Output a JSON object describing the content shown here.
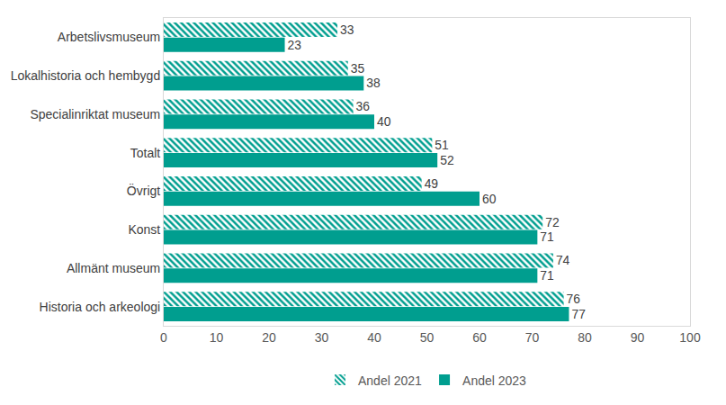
{
  "chart_data": {
    "type": "bar",
    "orientation": "horizontal",
    "categories": [
      "Arbetslivsmuseum",
      "Lokalhistoria och hembygd",
      "Specialinriktat museum",
      "Totalt",
      "Övrigt",
      "Konst",
      "Allmänt museum",
      "Historia och arkeologi"
    ],
    "series": [
      {
        "name": "Andel 2021",
        "color": "#009E8F",
        "marker": "hatched",
        "values": [
          33,
          35,
          36,
          51,
          49,
          72,
          74,
          76
        ]
      },
      {
        "name": "Andel 2023",
        "color": "#009E8F",
        "marker": "solid",
        "values": [
          23,
          38,
          40,
          52,
          60,
          71,
          71,
          77
        ]
      }
    ],
    "xlim": [
      0,
      100
    ],
    "xticks": [
      0,
      10,
      20,
      30,
      40,
      50,
      60,
      70,
      80,
      90,
      100
    ],
    "grid": false,
    "legend": "bottom",
    "data_labels": true
  }
}
